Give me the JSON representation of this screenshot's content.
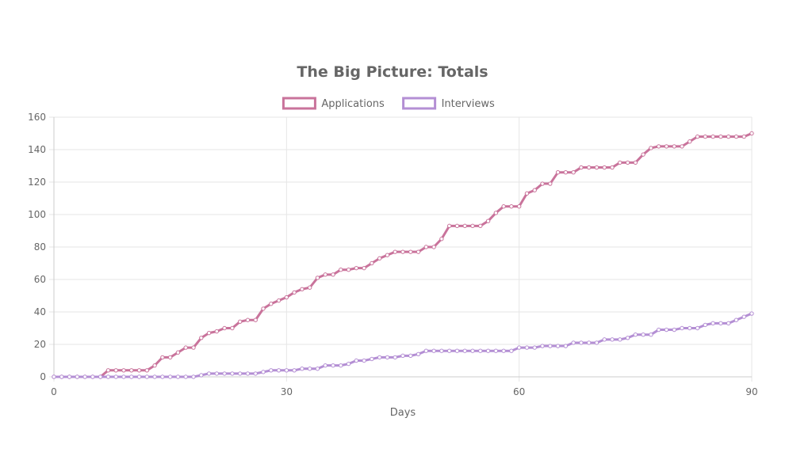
{
  "chart_data": {
    "type": "line",
    "title": "The Big Picture: Totals",
    "xlabel": "Days",
    "ylabel": "",
    "xlim": [
      0,
      90
    ],
    "ylim": [
      0,
      160
    ],
    "x_ticks": [
      0,
      30,
      60,
      90
    ],
    "y_ticks": [
      0,
      20,
      40,
      60,
      80,
      100,
      120,
      140,
      160
    ],
    "grid": true,
    "legend_position": "top",
    "x": [
      0,
      1,
      2,
      3,
      4,
      5,
      6,
      7,
      8,
      9,
      10,
      11,
      12,
      13,
      14,
      15,
      16,
      17,
      18,
      19,
      20,
      21,
      22,
      23,
      24,
      25,
      26,
      27,
      28,
      29,
      30,
      31,
      32,
      33,
      34,
      35,
      36,
      37,
      38,
      39,
      40,
      41,
      42,
      43,
      44,
      45,
      46,
      47,
      48,
      49,
      50,
      51,
      52,
      53,
      54,
      55,
      56,
      57,
      58,
      59,
      60,
      61,
      62,
      63,
      64,
      65,
      66,
      67,
      68,
      69,
      70,
      71,
      72,
      73,
      74,
      75,
      76,
      77,
      78,
      79,
      80,
      81,
      82,
      83,
      84,
      85,
      86,
      87,
      88,
      89,
      90
    ],
    "series": [
      {
        "name": "Applications",
        "color": "#c9739b",
        "values": [
          0,
          0,
          0,
          0,
          0,
          0,
          0,
          4,
          4,
          4,
          4,
          4,
          4,
          7,
          12,
          12,
          15,
          18,
          18,
          24,
          27,
          28,
          30,
          30,
          34,
          35,
          35,
          42,
          45,
          47,
          49,
          52,
          54,
          55,
          61,
          63,
          63,
          66,
          66,
          67,
          67,
          70,
          73,
          75,
          77,
          77,
          77,
          77,
          80,
          80,
          85,
          93,
          93,
          93,
          93,
          93,
          96,
          101,
          105,
          105,
          105,
          113,
          115,
          119,
          119,
          126,
          126,
          126,
          129,
          129,
          129,
          129,
          129,
          132,
          132,
          132,
          137,
          141,
          142,
          142,
          142,
          142,
          145,
          148,
          148,
          148,
          148,
          148,
          148,
          148,
          150
        ]
      },
      {
        "name": "Interviews",
        "color": "#b48fd4",
        "values": [
          0,
          0,
          0,
          0,
          0,
          0,
          0,
          0,
          0,
          0,
          0,
          0,
          0,
          0,
          0,
          0,
          0,
          0,
          0,
          1,
          2,
          2,
          2,
          2,
          2,
          2,
          2,
          3,
          4,
          4,
          4,
          4,
          5,
          5,
          5,
          7,
          7,
          7,
          8,
          10,
          10,
          11,
          12,
          12,
          12,
          13,
          13,
          14,
          16,
          16,
          16,
          16,
          16,
          16,
          16,
          16,
          16,
          16,
          16,
          16,
          18,
          18,
          18,
          19,
          19,
          19,
          19,
          21,
          21,
          21,
          21,
          23,
          23,
          23,
          24,
          26,
          26,
          26,
          29,
          29,
          29,
          30,
          30,
          30,
          32,
          33,
          33,
          33,
          35,
          37,
          39
        ]
      }
    ]
  }
}
